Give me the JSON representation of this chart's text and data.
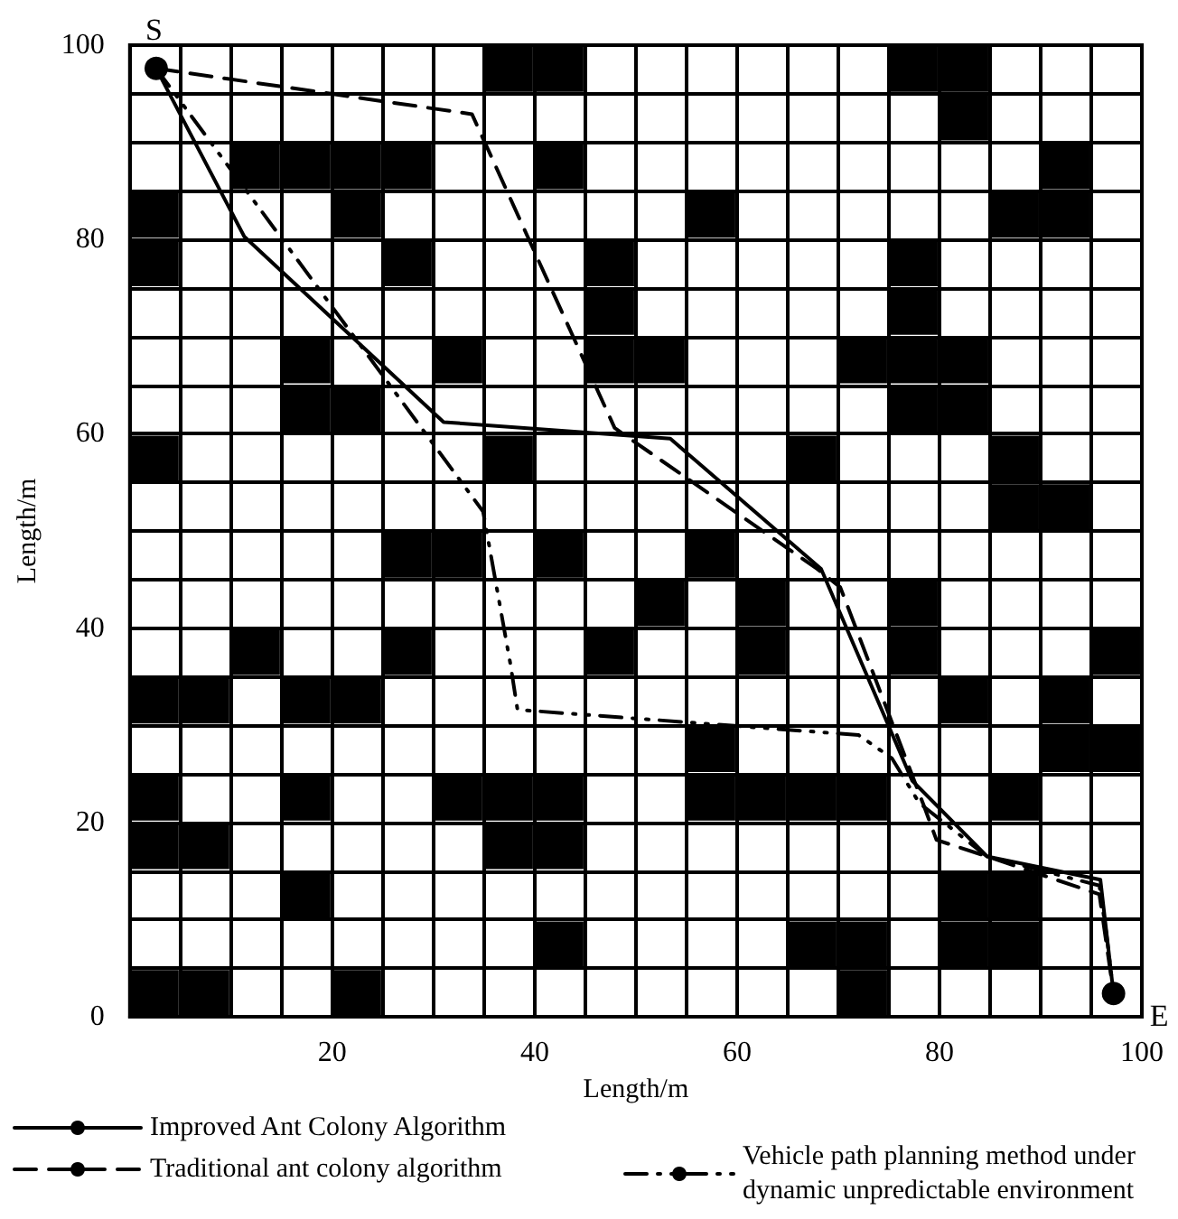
{
  "chart_data": {
    "type": "line",
    "xlabel": "Length/m",
    "ylabel": "Length/m",
    "xlim": [
      0,
      100
    ],
    "ylim": [
      0,
      100
    ],
    "xticks": [
      {
        "value": 0,
        "label": null
      },
      {
        "value": 5,
        "label": null
      },
      {
        "value": 10,
        "label": null
      },
      {
        "value": 15,
        "label": null
      },
      20,
      {
        "value": 25,
        "label": null
      },
      {
        "value": 30,
        "label": null
      },
      {
        "value": 35,
        "label": null
      },
      40,
      {
        "value": 45,
        "label": null
      },
      {
        "value": 50,
        "label": null
      },
      {
        "value": 55,
        "label": null
      },
      60,
      {
        "value": 65,
        "label": null
      },
      {
        "value": 70,
        "label": null
      },
      {
        "value": 75,
        "label": null
      },
      80,
      {
        "value": 85,
        "label": null
      },
      {
        "value": 90,
        "label": null
      },
      {
        "value": 95,
        "label": null
      },
      100
    ],
    "yticks": [
      0,
      {
        "value": 5,
        "label": null
      },
      {
        "value": 10,
        "label": null
      },
      {
        "value": 15,
        "label": null
      },
      20,
      {
        "value": 25,
        "label": null
      },
      {
        "value": 30,
        "label": null
      },
      {
        "value": 35,
        "label": null
      },
      40,
      {
        "value": 45,
        "label": null
      },
      {
        "value": 50,
        "label": null
      },
      {
        "value": 55,
        "label": null
      },
      60,
      {
        "value": 65,
        "label": null
      },
      {
        "value": 70,
        "label": null
      },
      {
        "value": 75,
        "label": null
      },
      80,
      {
        "value": 85,
        "label": null
      },
      {
        "value": 90,
        "label": null
      },
      {
        "value": 95,
        "label": null
      },
      100
    ],
    "grid": true,
    "legend": "bottom",
    "marker": "none",
    "series": [
      {
        "type": "scatter",
        "marker": "square",
        "color": "#000000",
        "x": [
          37.5,
          42.5,
          77.5,
          82.5,
          82.5,
          12.5,
          17.5,
          22.5,
          27.5,
          42.5,
          92.5,
          2.5,
          22.5,
          57.5,
          87.5,
          92.5,
          2.5,
          27.5,
          47.5,
          77.5,
          47.5,
          77.5,
          17.5,
          32.5,
          47.5,
          52.5,
          72.5,
          77.5,
          82.5,
          17.5,
          22.5,
          77.5,
          82.5,
          2.5,
          37.5,
          67.5,
          87.5,
          87.5,
          92.5,
          27.5,
          32.5,
          42.5,
          57.5,
          52.5,
          62.5,
          77.5,
          12.5,
          27.5,
          47.5,
          62.5,
          77.5,
          97.5,
          2.5,
          7.5,
          17.5,
          22.5,
          82.5,
          92.5,
          57.5,
          92.5,
          97.5,
          2.5,
          17.5,
          32.5,
          37.5,
          42.5,
          57.5,
          62.5,
          67.5,
          72.5,
          87.5,
          2.5,
          7.5,
          37.5,
          42.5,
          17.5,
          82.5,
          87.5,
          42.5,
          67.5,
          72.5,
          82.5,
          87.5,
          2.5,
          7.5,
          22.5,
          72.5
        ],
        "values": [
          97.5,
          97.5,
          97.5,
          97.5,
          92.5,
          87.5,
          87.5,
          87.5,
          87.5,
          87.5,
          87.5,
          82.5,
          82.5,
          82.5,
          82.5,
          82.5,
          77.5,
          77.5,
          77.5,
          77.5,
          72.5,
          72.5,
          67.5,
          67.5,
          67.5,
          67.5,
          67.5,
          67.5,
          67.5,
          62.5,
          62.5,
          62.5,
          62.5,
          57.5,
          57.5,
          57.5,
          57.5,
          52.5,
          52.5,
          47.5,
          47.5,
          47.5,
          47.5,
          42.5,
          42.5,
          42.5,
          37.5,
          37.5,
          37.5,
          37.5,
          37.5,
          37.5,
          32.5,
          32.5,
          32.5,
          32.5,
          32.5,
          32.5,
          27.5,
          27.5,
          27.5,
          22.5,
          22.5,
          22.5,
          22.5,
          22.5,
          22.5,
          22.5,
          22.5,
          22.5,
          22.5,
          17.5,
          17.5,
          17.5,
          17.5,
          12.5,
          12.5,
          12.5,
          7.5,
          7.5,
          7.5,
          7.5,
          7.5,
          2.5,
          2.5,
          2.5,
          2.5
        ]
      },
      {
        "name": "Improved Ant Colony Algorithm",
        "color": "#000000",
        "line_style": "solid",
        "x": [
          2.6,
          11.3,
          31,
          53.4,
          68.3,
          77.3,
          84.7,
          95.9,
          97.2
        ],
        "values": [
          97.6,
          80.3,
          61.2,
          59.5,
          46.1,
          24.3,
          16.5,
          14.1,
          2.4
        ]
      },
      {
        "name": "Traditional ant colony algorithm",
        "color": "#000000",
        "line_style": "dashed",
        "x": [
          2.6,
          33.8,
          47.9,
          67.9,
          70.2,
          78.5,
          79.7,
          84.7,
          95.8,
          97.2
        ],
        "values": [
          97.6,
          92.9,
          60.6,
          46.1,
          44.2,
          21.6,
          18.2,
          16.5,
          12.6,
          2.4
        ]
      },
      {
        "name": "Vehicle path planning method under dynamic unpredictable environment",
        "color": "#000000",
        "line_style": "dashdot",
        "x": [
          2.6,
          34.9,
          37.6,
          38.3,
          72,
          75.3,
          78,
          84.7,
          95.8,
          96.5,
          97.2
        ],
        "values": [
          97.6,
          52,
          36.3,
          31.6,
          29,
          26.6,
          22,
          16.5,
          13.5,
          8.5,
          2.4
        ]
      },
      {
        "type": "scatter",
        "marker": "circle",
        "color": "#000000",
        "x": [
          2.6,
          97.2
        ],
        "values": [
          97.6,
          2.4
        ]
      }
    ],
    "annotations": [
      {
        "text": "S",
        "x": 2.6,
        "y": 97.6
      },
      {
        "text": "E",
        "x": 97.2,
        "y": 2.4
      }
    ]
  }
}
